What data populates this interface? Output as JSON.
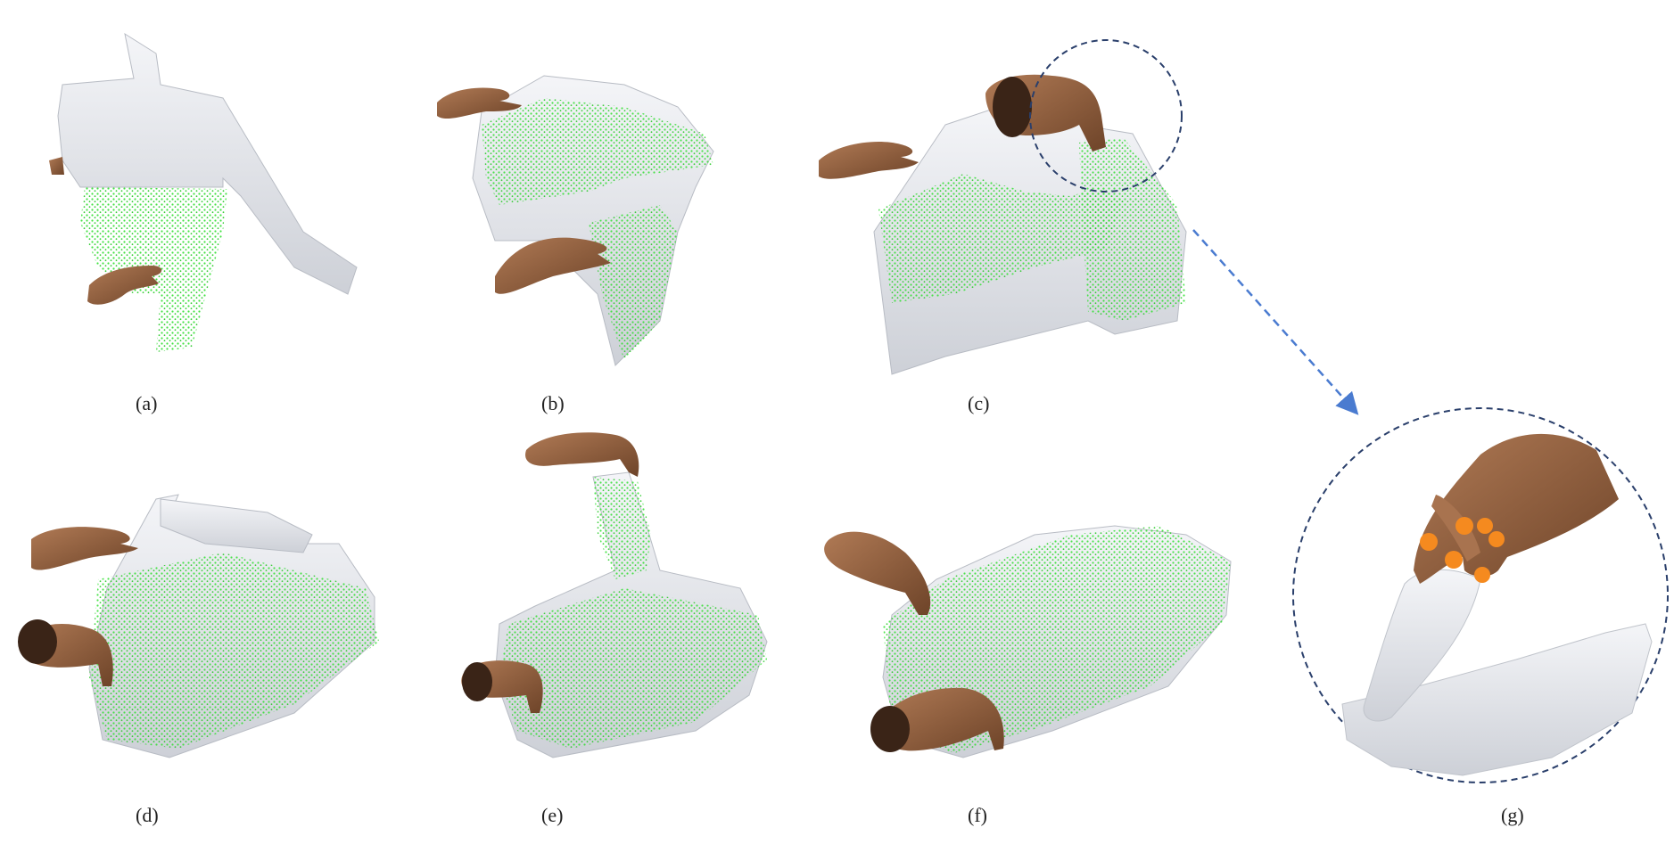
{
  "panels": [
    {
      "id": "a",
      "label": "(a)"
    },
    {
      "id": "b",
      "label": "(b)"
    },
    {
      "id": "c",
      "label": "(c)"
    },
    {
      "id": "d",
      "label": "(d)"
    },
    {
      "id": "e",
      "label": "(e)"
    },
    {
      "id": "f",
      "label": "(f)"
    },
    {
      "id": "g",
      "label": "(g)"
    }
  ],
  "colors": {
    "cloth": "#eceef2",
    "cloth_shade": "#c9ccd3",
    "point_cloud": "#2fe02f",
    "skin": "#8a5a3c",
    "skin_light": "#a8734f",
    "callout": "#2a3f6b",
    "arrow": "#4a7bd0",
    "contact_points": "#f58a1f"
  },
  "icons": {
    "hand": "hand-model-icon",
    "cloth": "cloth-mesh-icon",
    "points": "point-cloud-icon"
  }
}
